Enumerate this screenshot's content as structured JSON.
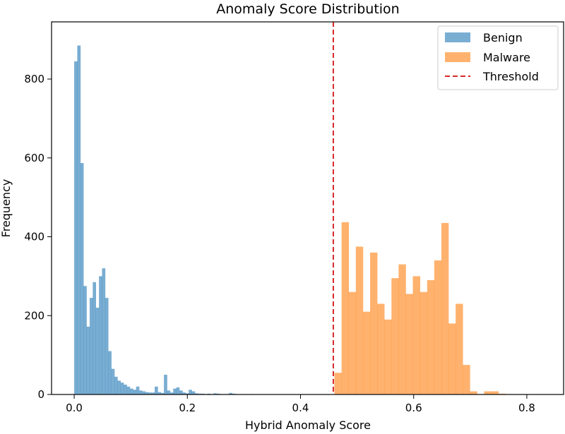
{
  "chart_data": {
    "type": "histogram",
    "title": "Anomaly Score Distribution",
    "xlabel": "Hybrid Anomaly Score",
    "ylabel": "Frequency",
    "xlim": [
      -0.04,
      0.865
    ],
    "ylim": [
      0,
      945
    ],
    "xticks": [
      0.0,
      0.2,
      0.4,
      0.6,
      0.8
    ],
    "xtick_labels": [
      "0.0",
      "0.2",
      "0.4",
      "0.6",
      "0.8"
    ],
    "yticks": [
      0,
      200,
      400,
      600,
      800
    ],
    "ytick_labels": [
      "0",
      "200",
      "400",
      "600",
      "800"
    ],
    "grid": false,
    "legend_position": "top-right",
    "series": [
      {
        "name": "Benign",
        "color": "#1f77b4",
        "alpha": 0.6,
        "bin_start": 0.0,
        "bin_width": 0.00547,
        "counts": [
          845,
          885,
          587,
          275,
          172,
          245,
          285,
          220,
          300,
          320,
          245,
          110,
          65,
          45,
          35,
          30,
          25,
          20,
          15,
          12,
          20,
          10,
          8,
          6,
          5,
          5,
          20,
          6,
          4,
          50,
          10,
          5,
          15,
          18,
          10,
          5,
          3,
          12,
          8,
          3,
          2,
          2,
          1,
          2,
          1,
          3,
          2,
          1,
          1,
          1,
          4,
          2,
          1,
          1,
          1,
          0,
          0,
          1
        ]
      },
      {
        "name": "Malware",
        "color": "#ff7f0e",
        "alpha": 0.6,
        "bin_start": 0.46,
        "bin_width": 0.0126,
        "counts": [
          55,
          437,
          260,
          375,
          210,
          360,
          230,
          190,
          295,
          330,
          255,
          300,
          260,
          290,
          340,
          435,
          180,
          230,
          75,
          8,
          1,
          8,
          8,
          2,
          1,
          0,
          1
        ]
      }
    ],
    "threshold": {
      "name": "Threshold",
      "x": 0.458,
      "color": "#d62728",
      "style": "dashed"
    }
  }
}
